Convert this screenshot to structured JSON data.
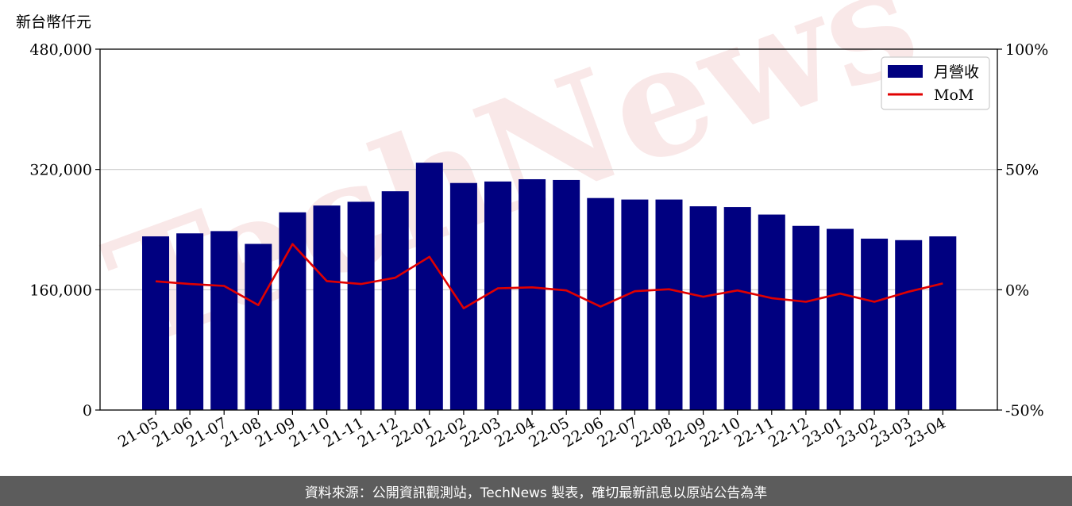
{
  "chart_data": {
    "type": "bar",
    "unit_label": "新台幣仟元",
    "categories": [
      "21-05",
      "21-06",
      "21-07",
      "21-08",
      "21-09",
      "21-10",
      "21-11",
      "21-12",
      "22-01",
      "22-02",
      "22-03",
      "22-04",
      "22-05",
      "22-06",
      "22-07",
      "22-08",
      "22-09",
      "22-10",
      "22-11",
      "22-12",
      "23-01",
      "23-02",
      "23-03",
      "23-04"
    ],
    "series": [
      {
        "name": "月營收",
        "type": "bar",
        "axis": "left",
        "color": "#000080",
        "values": [
          231000,
          235000,
          238000,
          221000,
          263000,
          272000,
          277000,
          291000,
          329000,
          302000,
          304000,
          307000,
          306000,
          282000,
          280000,
          280000,
          271000,
          270000,
          260000,
          245000,
          241000,
          228000,
          226000,
          231000
        ]
      },
      {
        "name": "MoM",
        "type": "line",
        "axis": "right",
        "color": "#e00000",
        "values": [
          3.5,
          2.4,
          1.6,
          -6.4,
          19.0,
          3.6,
          2.4,
          5.0,
          13.7,
          -7.7,
          0.6,
          1.0,
          -0.3,
          -7.0,
          -0.6,
          0.2,
          -2.9,
          -0.3,
          -3.5,
          -5.0,
          -1.6,
          -5.0,
          -0.8,
          2.6
        ]
      }
    ],
    "y_left": {
      "lim": [
        0,
        480000
      ],
      "ticks": [
        "0",
        "160,000",
        "320,000",
        "480,000"
      ],
      "tick_values": [
        0,
        160000,
        320000,
        480000
      ]
    },
    "y_right": {
      "lim": [
        -50,
        100
      ],
      "ticks": [
        "-50%",
        "0%",
        "50%",
        "100%"
      ],
      "tick_values": [
        -50,
        0,
        50,
        100
      ]
    },
    "grid": "horizontal",
    "legend_placement": "top-right",
    "watermark": "TechNews"
  },
  "footer": {
    "source_text": "資料來源：公開資訊觀測站，TechNews 製表，確切最新訊息以原站公告為準"
  }
}
